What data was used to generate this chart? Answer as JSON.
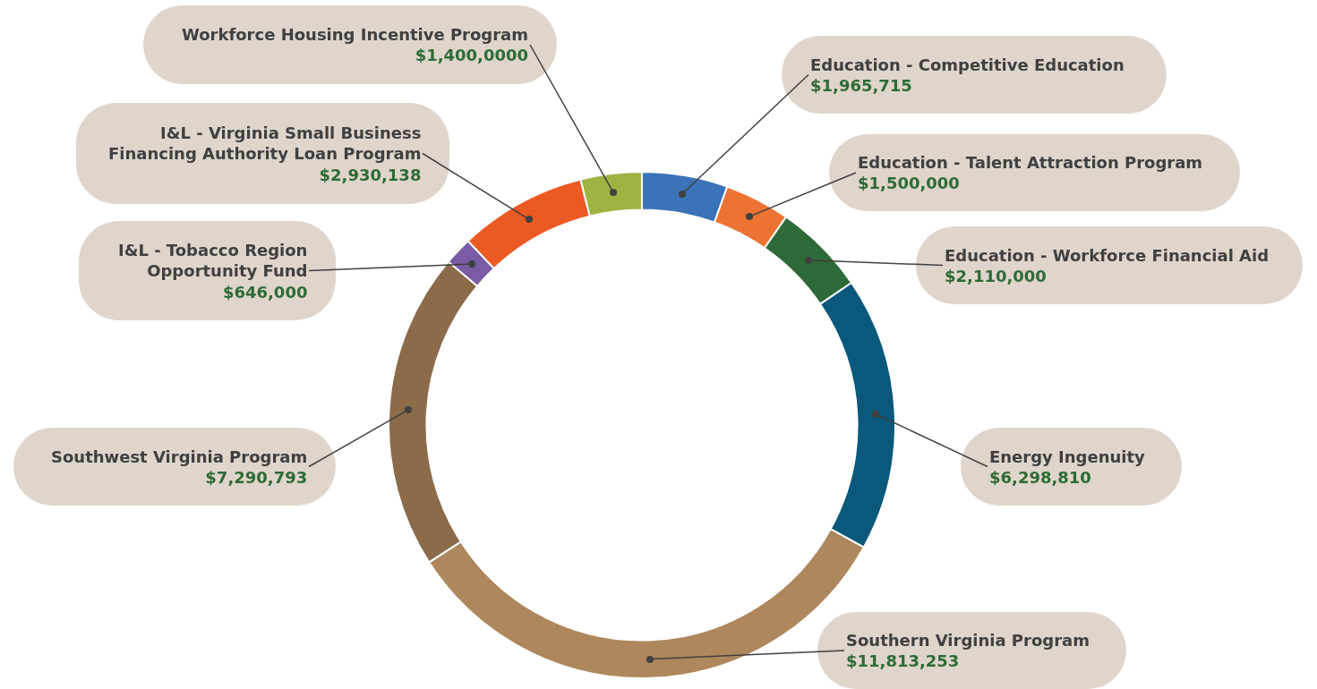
{
  "chart_data": {
    "type": "donut",
    "categories": [
      "Education - Competitive Education",
      "Education - Talent Attraction Program",
      "Education - Workforce Financial Aid",
      "Energy Ingenuity",
      "Southern Virginia Program",
      "Southwest Virginia Program",
      "I&L - Tobacco Region Opportunity Fund",
      "I&L - Virginia Small Business Financing Authority Loan Program",
      "Workforce Housing Incentive Program"
    ],
    "values": [
      1965715,
      1500000,
      2110000,
      6298810,
      11813253,
      7290793,
      646000,
      2930138,
      1400000
    ],
    "value_labels": [
      "$1,965,715",
      "$1,500,000",
      "$2,110,000",
      "$6,298,810",
      "$11,813,253",
      "$7,290,793",
      "$646,000",
      "$2,930,138",
      "$1,400,0000"
    ],
    "colors": [
      "#3a73b8",
      "#ec7332",
      "#2d6a37",
      "#0a587c",
      "#ae875c",
      "#8b6b4a",
      "#7a5ba6",
      "#ec5a24",
      "#9db443"
    ]
  }
}
